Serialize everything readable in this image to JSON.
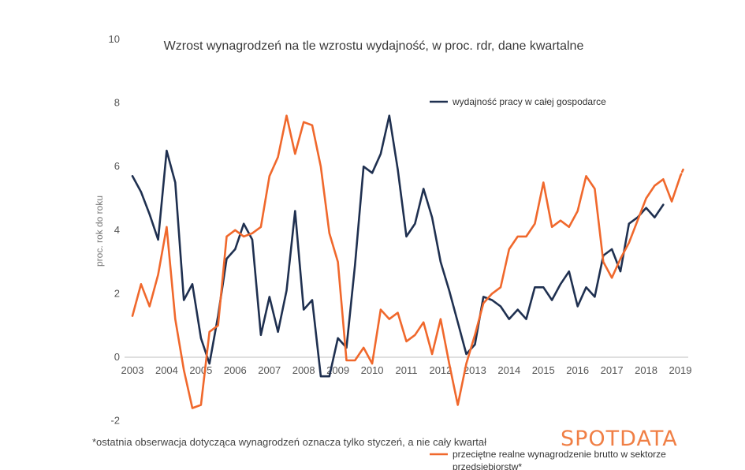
{
  "chart_data": {
    "type": "line",
    "title": "Wzrost wynagrodzeń na tle wzrostu wydajność, w proc. rdr, dane kwartalne",
    "ylabel": "proc. rok do roku",
    "xlabel": "",
    "ylim": [
      -2,
      10
    ],
    "yticks": [
      10,
      8,
      6,
      4,
      2,
      0,
      -2
    ],
    "xticks": [
      "2003",
      "2004",
      "2005",
      "2006",
      "2007",
      "2008",
      "2009",
      "2010",
      "2011",
      "2012",
      "2013",
      "2014",
      "2015",
      "2016",
      "2017",
      "2018",
      "2019"
    ],
    "legend_position": "top-right",
    "series": [
      {
        "name": "wydajność pracy w całej gospodarce",
        "color": "#1f3050",
        "x": [
          2003.0,
          2003.25,
          2003.5,
          2003.75,
          2004.0,
          2004.25,
          2004.5,
          2004.75,
          2005.0,
          2005.25,
          2005.5,
          2005.75,
          2006.0,
          2006.25,
          2006.5,
          2006.75,
          2007.0,
          2007.25,
          2007.5,
          2007.75,
          2008.0,
          2008.25,
          2008.5,
          2008.75,
          2009.0,
          2009.25,
          2009.5,
          2009.75,
          2010.0,
          2010.25,
          2010.5,
          2010.75,
          2011.0,
          2011.25,
          2011.5,
          2011.75,
          2012.0,
          2012.25,
          2012.5,
          2012.75,
          2013.0,
          2013.25,
          2013.5,
          2013.75,
          2014.0,
          2014.25,
          2014.5,
          2014.75,
          2015.0,
          2015.25,
          2015.5,
          2015.75,
          2016.0,
          2016.25,
          2016.5,
          2016.75,
          2017.0,
          2017.25,
          2017.5,
          2017.75,
          2018.0,
          2018.25,
          2018.5
        ],
        "values": [
          5.7,
          5.2,
          4.5,
          3.7,
          6.5,
          5.5,
          1.8,
          2.3,
          0.6,
          -0.2,
          1.3,
          3.1,
          3.4,
          4.2,
          3.7,
          0.7,
          1.9,
          0.8,
          2.1,
          4.6,
          1.5,
          1.8,
          -0.6,
          -0.6,
          0.6,
          0.3,
          2.9,
          6.0,
          5.8,
          6.4,
          7.6,
          5.9,
          3.8,
          4.2,
          5.3,
          4.4,
          3.0,
          2.1,
          1.1,
          0.1,
          0.4,
          1.9,
          1.8,
          1.6,
          1.2,
          1.5,
          1.2,
          2.2,
          2.2,
          1.8,
          2.3,
          2.7,
          1.6,
          2.2,
          1.9,
          3.2,
          3.4,
          2.7,
          4.2,
          4.4,
          4.7,
          4.4,
          4.8
        ]
      },
      {
        "name": "przeciętne realne wynagrodzenie brutto w sektorze przedsiębiorstw*",
        "color": "#f0682c",
        "x": [
          2003.0,
          2003.25,
          2003.5,
          2003.75,
          2004.0,
          2004.25,
          2004.5,
          2004.75,
          2005.0,
          2005.25,
          2005.5,
          2005.75,
          2006.0,
          2006.25,
          2006.5,
          2006.75,
          2007.0,
          2007.25,
          2007.5,
          2007.75,
          2008.0,
          2008.25,
          2008.5,
          2008.75,
          2009.0,
          2009.25,
          2009.5,
          2009.75,
          2010.0,
          2010.25,
          2010.5,
          2010.75,
          2011.0,
          2011.25,
          2011.5,
          2011.75,
          2012.0,
          2012.25,
          2012.5,
          2012.75,
          2013.0,
          2013.25,
          2013.5,
          2013.75,
          2014.0,
          2014.25,
          2014.5,
          2014.75,
          2015.0,
          2015.25,
          2015.5,
          2015.75,
          2016.0,
          2016.25,
          2016.5,
          2016.75,
          2017.0,
          2017.25,
          2017.5,
          2017.75,
          2018.0,
          2018.25,
          2018.5,
          2018.75,
          2019.0
        ],
        "values": [
          1.3,
          2.3,
          1.6,
          2.6,
          4.1,
          1.2,
          -0.4,
          -1.6,
          -1.5,
          0.8,
          1.0,
          3.8,
          4.0,
          3.8,
          3.9,
          4.1,
          5.7,
          6.3,
          7.6,
          6.4,
          7.4,
          7.3,
          6.0,
          3.9,
          3.0,
          -0.1,
          -0.1,
          0.3,
          -0.2,
          1.5,
          1.2,
          1.4,
          0.5,
          0.7,
          1.1,
          0.1,
          1.2,
          -0.2,
          -1.5,
          -0.2,
          0.7,
          1.7,
          2.0,
          2.2,
          3.4,
          3.8,
          3.8,
          4.2,
          5.5,
          4.1,
          4.3,
          4.1,
          4.6,
          5.7,
          5.3,
          3.0,
          2.5,
          3.1,
          3.6,
          4.3,
          5.0,
          5.4,
          5.6,
          4.9,
          5.7
        ]
      },
      {
        "name": "",
        "color": "#f0682c",
        "dashed": true,
        "x": [
          2019.0,
          2019.1
        ],
        "values": [
          5.7,
          5.95
        ]
      }
    ]
  },
  "legend": [
    {
      "lines": [
        "wydajność pracy w całej gospodarce"
      ],
      "color": "#1f3050"
    },
    {
      "lines": [
        "przeciętne realne wynagrodzenie brutto w sektorze",
        "przedsiębiorstw*"
      ],
      "color": "#f0682c"
    }
  ],
  "footnote": "*ostatnia obserwacja dotycząca wynagrodzeń oznacza tylko styczeń, a nie cały kwartał",
  "logo": {
    "text": "SPOTDATA",
    "color": "#f07f45"
  }
}
